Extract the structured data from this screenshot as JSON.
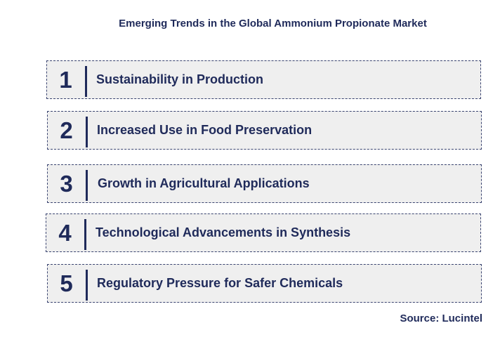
{
  "title": "Emerging Trends in the Global Ammonium Propionate Market",
  "trends": [
    {
      "number": "1",
      "label": "Sustainability in Production"
    },
    {
      "number": "2",
      "label": "Increased Use in Food Preservation"
    },
    {
      "number": "3",
      "label": "Growth in Agricultural Applications"
    },
    {
      "number": "4",
      "label": "Technological Advancements in Synthesis"
    },
    {
      "number": "5",
      "label": "Regulatory Pressure for Safer Chemicals"
    }
  ],
  "source": "Source: Lucintel",
  "colors": {
    "text": "#1f2a5a",
    "row_background": "#efefef"
  }
}
